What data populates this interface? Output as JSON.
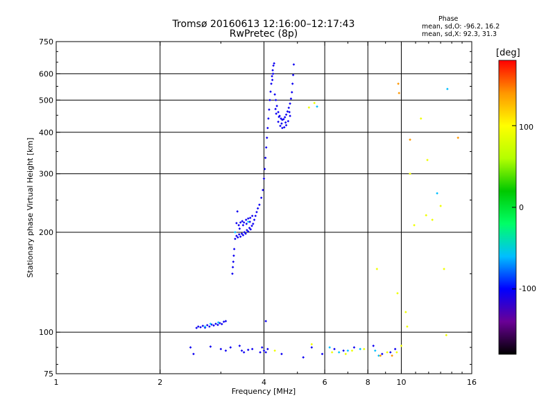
{
  "chart_data": {
    "type": "scatter",
    "title_line1": "Tromsø 20160613 12:16:00–12:17:43",
    "title_line2": "RwPretec (8p)",
    "phase_box": {
      "heading": "Phase",
      "line1": "mean, sd,O: -96.2, 16.2",
      "line2": "mean, sd,X:  92.3, 31.3"
    },
    "xlabel": "Frequency [MHz]",
    "ylabel": "Stationary phase Virtual Height [km]",
    "x_scale": "log",
    "y_scale": "log",
    "xlim": [
      1,
      16
    ],
    "ylim": [
      75,
      750
    ],
    "x_ticks": [
      1,
      2,
      4,
      6,
      8,
      10,
      16
    ],
    "x_tick_labels": [
      "1",
      "2",
      "4",
      "6",
      "8",
      "10",
      "16"
    ],
    "y_ticks": [
      75,
      100,
      200,
      300,
      400,
      500,
      600,
      750
    ],
    "y_tick_labels": [
      "75",
      "100",
      "200",
      "300",
      "400",
      "500",
      "600",
      "750"
    ],
    "grid_x": [
      2,
      4,
      6,
      8,
      10
    ],
    "grid_y": [
      100,
      200,
      300,
      400,
      500,
      600
    ],
    "colorbar": {
      "label": "[deg]",
      "min": -180,
      "max": 180,
      "tick_values": [
        100,
        0,
        -100
      ],
      "tick_labels": [
        "100",
        "0",
        "-100"
      ],
      "stops": [
        "#000000",
        "#6a0096",
        "#0000ff",
        "#00bfff",
        "#00ff66",
        "#00c800",
        "#b4ff00",
        "#ffff00",
        "#ff9600",
        "#ff0000"
      ]
    },
    "series": [
      {
        "mode": "O",
        "phase": -105,
        "points": [
          [
            2.55,
            103
          ],
          [
            2.58,
            104
          ],
          [
            2.62,
            103.5
          ],
          [
            2.66,
            104.5
          ],
          [
            2.7,
            103.2
          ],
          [
            2.74,
            105
          ],
          [
            2.78,
            104
          ],
          [
            2.82,
            105.5
          ],
          [
            2.86,
            104.8
          ],
          [
            2.9,
            106
          ],
          [
            2.94,
            105.2
          ],
          [
            2.98,
            106.5
          ],
          [
            3.02,
            105.8
          ],
          [
            3.06,
            107.5
          ],
          [
            3.1,
            108
          ],
          [
            3.24,
            150
          ],
          [
            3.25,
            157
          ],
          [
            3.26,
            163
          ],
          [
            3.27,
            170
          ],
          [
            3.28,
            178
          ],
          [
            3.3,
            191
          ],
          [
            3.33,
            195
          ],
          [
            3.36,
            193
          ],
          [
            3.39,
            197
          ],
          [
            3.42,
            194
          ],
          [
            3.45,
            198
          ],
          [
            3.48,
            196
          ],
          [
            3.51,
            200
          ],
          [
            3.54,
            198
          ],
          [
            3.57,
            203
          ],
          [
            3.6,
            201
          ],
          [
            3.63,
            206
          ],
          [
            3.66,
            204
          ],
          [
            3.69,
            209
          ],
          [
            3.72,
            212
          ],
          [
            3.75,
            218
          ],
          [
            3.78,
            224
          ],
          [
            3.81,
            230
          ],
          [
            3.84,
            236
          ],
          [
            3.33,
            213
          ],
          [
            3.38,
            210
          ],
          [
            3.42,
            214
          ],
          [
            3.46,
            216
          ],
          [
            3.5,
            214
          ],
          [
            3.55,
            218
          ],
          [
            3.6,
            220
          ],
          [
            3.65,
            221
          ],
          [
            3.7,
            224
          ],
          [
            3.4,
            205
          ],
          [
            3.48,
            210
          ],
          [
            3.56,
            212
          ],
          [
            3.64,
            215
          ],
          [
            3.35,
            231
          ],
          [
            3.88,
            242
          ],
          [
            3.93,
            254
          ],
          [
            3.97,
            268
          ],
          [
            4.0,
            290
          ],
          [
            4.02,
            310
          ],
          [
            4.04,
            335
          ],
          [
            4.06,
            360
          ],
          [
            4.08,
            385
          ],
          [
            4.1,
            412
          ],
          [
            4.12,
            440
          ],
          [
            4.14,
            468
          ],
          [
            4.16,
            500
          ],
          [
            4.18,
            530
          ],
          [
            4.2,
            560
          ],
          [
            4.22,
            590
          ],
          [
            4.24,
            615
          ],
          [
            4.26,
            635
          ],
          [
            4.28,
            645
          ],
          [
            4.25,
            600
          ],
          [
            4.23,
            575
          ],
          [
            4.3,
            520
          ],
          [
            4.33,
            500
          ],
          [
            4.36,
            480
          ],
          [
            4.4,
            460
          ],
          [
            4.44,
            448
          ],
          [
            4.48,
            440
          ],
          [
            4.52,
            436
          ],
          [
            4.56,
            438
          ],
          [
            4.6,
            444
          ],
          [
            4.64,
            452
          ],
          [
            4.68,
            462
          ],
          [
            4.72,
            474
          ],
          [
            4.76,
            488
          ],
          [
            4.79,
            505
          ],
          [
            4.82,
            528
          ],
          [
            4.84,
            560
          ],
          [
            4.86,
            595
          ],
          [
            4.88,
            640
          ],
          [
            4.34,
            455
          ],
          [
            4.4,
            430
          ],
          [
            4.46,
            418
          ],
          [
            4.52,
            412
          ],
          [
            4.58,
            414
          ],
          [
            4.64,
            420
          ],
          [
            4.7,
            432
          ],
          [
            4.76,
            448
          ],
          [
            4.32,
            470
          ],
          [
            4.42,
            445
          ],
          [
            4.5,
            425
          ],
          [
            4.62,
            428
          ],
          [
            4.74,
            460
          ],
          [
            4.05,
            108
          ],
          [
            2.45,
            90
          ],
          [
            2.5,
            86
          ],
          [
            2.8,
            90.5
          ],
          [
            3.0,
            89
          ],
          [
            3.1,
            88
          ],
          [
            3.2,
            90
          ],
          [
            3.4,
            91
          ],
          [
            3.45,
            88
          ],
          [
            3.5,
            87
          ],
          [
            3.6,
            88.5
          ],
          [
            3.7,
            89
          ],
          [
            3.9,
            87
          ],
          [
            3.95,
            90
          ],
          [
            4.0,
            88
          ],
          [
            4.05,
            87
          ],
          [
            4.1,
            89
          ],
          [
            4.5,
            86
          ],
          [
            5.2,
            84
          ],
          [
            5.5,
            90
          ],
          [
            5.9,
            86
          ],
          [
            6.4,
            89
          ],
          [
            6.8,
            88
          ],
          [
            7.3,
            90
          ],
          [
            8.3,
            91
          ],
          [
            8.8,
            86
          ],
          [
            9.3,
            87
          ],
          [
            9.6,
            89
          ]
        ]
      },
      {
        "mode": "O-scatter",
        "phase": -60,
        "points": [
          [
            2.7,
            104
          ],
          [
            2.8,
            106
          ],
          [
            2.95,
            107
          ],
          [
            3.3,
            200
          ],
          [
            3.6,
            215
          ],
          [
            5.7,
            478
          ],
          [
            6.2,
            90
          ],
          [
            6.6,
            87
          ],
          [
            7.0,
            88
          ],
          [
            7.6,
            89
          ],
          [
            8.4,
            88
          ],
          [
            8.6,
            85
          ],
          [
            12.7,
            262
          ],
          [
            13.6,
            540
          ]
        ]
      },
      {
        "mode": "X",
        "phase": 92,
        "points": [
          [
            5.4,
            475
          ],
          [
            5.6,
            490
          ],
          [
            6.3,
            87
          ],
          [
            6.9,
            86
          ],
          [
            7.2,
            88
          ],
          [
            7.8,
            89
          ],
          [
            8.5,
            155
          ],
          [
            9.1,
            87
          ],
          [
            9.7,
            87
          ],
          [
            10.3,
            115
          ],
          [
            10.4,
            104
          ],
          [
            10.6,
            300
          ],
          [
            10.9,
            210
          ],
          [
            11.4,
            440
          ],
          [
            11.8,
            225
          ],
          [
            11.9,
            330
          ],
          [
            12.3,
            218
          ],
          [
            13.0,
            240
          ],
          [
            13.3,
            155
          ],
          [
            13.5,
            98
          ],
          [
            9.75,
            131
          ],
          [
            10.0,
            91
          ],
          [
            4.3,
            88
          ],
          [
            5.5,
            92
          ]
        ]
      },
      {
        "mode": "X-high",
        "phase": 140,
        "points": [
          [
            9.8,
            560
          ],
          [
            9.85,
            525
          ],
          [
            10.6,
            380
          ],
          [
            14.6,
            385
          ],
          [
            9.4,
            85
          ],
          [
            8.7,
            85
          ]
        ]
      }
    ]
  }
}
